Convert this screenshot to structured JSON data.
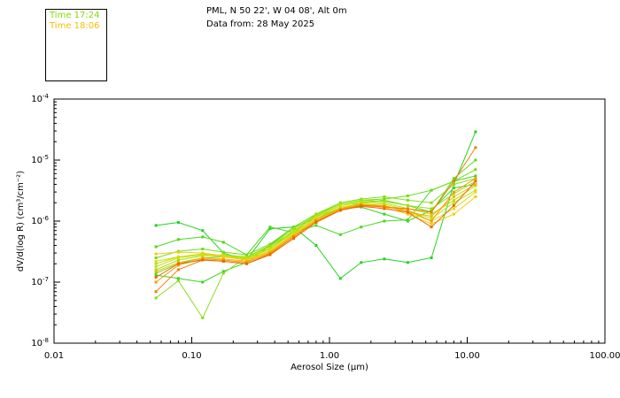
{
  "legend": [
    {
      "label": "Time 17:24",
      "color": "#7fdd00"
    },
    {
      "label": "Time 18:06",
      "color": "#f0c000"
    }
  ],
  "header": {
    "line1": "PML, N 50 22', W 04 08', Alt 0m",
    "line2": "Data from: 28 May 2025"
  },
  "chart_data": {
    "type": "line",
    "title": "",
    "xlabel": "Aerosol Size (μm)",
    "ylabel": "dV/d(log R) (cm³/cm⁻²)",
    "xscale": "log",
    "yscale": "log",
    "xlim": [
      0.01,
      100
    ],
    "ylim": [
      1e-08,
      0.0001
    ],
    "xticks": [
      {
        "value": 0.01,
        "label": "0.01"
      },
      {
        "value": 0.1,
        "label": "0.10"
      },
      {
        "value": 1,
        "label": "1.00"
      },
      {
        "value": 10,
        "label": "10.00"
      },
      {
        "value": 100,
        "label": "100.00"
      }
    ],
    "yticks": [
      {
        "value": 1e-08,
        "base": "10",
        "exp": "-8"
      },
      {
        "value": 1e-07,
        "base": "10",
        "exp": "-7"
      },
      {
        "value": 1e-06,
        "base": "10",
        "exp": "-6"
      },
      {
        "value": 1e-05,
        "base": "10",
        "exp": "-5"
      },
      {
        "value": 0.0001,
        "base": "10",
        "exp": "-4"
      }
    ],
    "x": [
      0.055,
      0.08,
      0.12,
      0.17,
      0.25,
      0.37,
      0.55,
      0.8,
      1.2,
      1.7,
      2.5,
      3.7,
      5.5,
      8.0,
      11.5
    ],
    "series": [
      {
        "name": "s1",
        "color": "#22d422",
        "values": [
          8.5e-07,
          9.5e-07,
          7e-07,
          3e-07,
          2.3e-07,
          7.5e-07,
          8e-07,
          4e-07,
          1.15e-07,
          2.1e-07,
          2.4e-07,
          2.1e-07,
          2.5e-07,
          4e-06,
          2.9e-05
        ]
      },
      {
        "name": "s2",
        "color": "#36d61e",
        "values": [
          1.3e-07,
          1.15e-07,
          1e-07,
          1.5e-07,
          2.1e-07,
          4e-07,
          8e-07,
          1.1e-06,
          1.6e-06,
          1.7e-06,
          1.3e-06,
          1e-06,
          1.5e-06,
          3.5e-06,
          4e-06
        ]
      },
      {
        "name": "s3",
        "color": "#4cd81c",
        "values": [
          3.8e-07,
          5e-07,
          5.5e-07,
          4.5e-07,
          2.8e-07,
          8e-07,
          6.5e-07,
          8.5e-07,
          6e-07,
          8e-07,
          1e-06,
          1.05e-06,
          3.2e-06,
          4.5e-06,
          5.5e-06
        ]
      },
      {
        "name": "s4",
        "color": "#5edb1a",
        "values": [
          1.4e-07,
          2e-07,
          2.5e-07,
          2.6e-07,
          2.5e-07,
          3.5e-07,
          7e-07,
          1.2e-06,
          1.6e-06,
          2e-06,
          2.2e-06,
          1.8e-06,
          1.4e-06,
          5e-06,
          1e-05
        ]
      },
      {
        "name": "s5",
        "color": "#70dd18",
        "values": [
          2.5e-07,
          3.2e-07,
          3.5e-07,
          3.1e-07,
          2.8e-07,
          4.2e-07,
          8e-07,
          1.3e-06,
          1.9e-06,
          2.2e-06,
          2.3e-06,
          2.6e-06,
          3.2e-06,
          4.5e-06,
          7e-06
        ]
      },
      {
        "name": "s6",
        "color": "#84df16",
        "values": [
          5.5e-08,
          1.05e-07,
          2.6e-08,
          1.4e-07,
          2.6e-07,
          4e-07,
          6.5e-07,
          1.3e-06,
          2e-06,
          2.3e-06,
          2.5e-06,
          2.2e-06,
          2e-06,
          4e-06,
          5e-06
        ]
      },
      {
        "name": "s7",
        "color": "#98e014",
        "values": [
          1.6e-07,
          2.3e-07,
          2.7e-07,
          2.8e-07,
          2.6e-07,
          3.8e-07,
          7.5e-07,
          1.25e-06,
          1.9e-06,
          2.2e-06,
          2.1e-06,
          1.8e-06,
          1.6e-06,
          2.8e-06,
          4.5e-06
        ]
      },
      {
        "name": "s8",
        "color": "#aee212",
        "values": [
          2e-07,
          2.6e-07,
          2.9e-07,
          2.7e-07,
          2.5e-07,
          3.6e-07,
          7e-07,
          1.2e-06,
          1.8e-06,
          2.1e-06,
          2e-06,
          1.6e-06,
          1.3e-06,
          2.2e-06,
          3.8e-06
        ]
      },
      {
        "name": "s9",
        "color": "#c4e210",
        "values": [
          1.8e-07,
          2.5e-07,
          2.8e-07,
          2.7e-07,
          2.4e-07,
          3.5e-07,
          6.5e-07,
          1.15e-06,
          1.8e-06,
          2e-06,
          1.9e-06,
          1.5e-06,
          1.1e-06,
          2e-06,
          3.2e-06
        ]
      },
      {
        "name": "s10",
        "color": "#dcdc0e",
        "values": [
          2.2e-07,
          2.6e-07,
          2.8e-07,
          2.6e-07,
          2.3e-07,
          3.3e-07,
          6.2e-07,
          1.1e-06,
          1.7e-06,
          1.9e-06,
          1.8e-06,
          1.4e-06,
          1e-06,
          1.6e-06,
          3e-06
        ]
      },
      {
        "name": "s11",
        "color": "#f0cc0a",
        "values": [
          2.9e-07,
          3.1e-07,
          3e-07,
          2.7e-07,
          2.3e-07,
          3.2e-07,
          6e-07,
          1.05e-06,
          1.6e-06,
          1.85e-06,
          1.7e-06,
          1.3e-06,
          9e-07,
          1.3e-06,
          2.5e-06
        ]
      },
      {
        "name": "s12",
        "color": "#f8b408",
        "values": [
          1.5e-07,
          2.1e-07,
          2.5e-07,
          2.4e-07,
          2.2e-07,
          3.1e-07,
          5.8e-07,
          1.05e-06,
          1.6e-06,
          1.9e-06,
          1.8e-06,
          1.4e-06,
          1.2e-06,
          2.5e-06,
          4e-06
        ]
      },
      {
        "name": "s13",
        "color": "#f89a06",
        "values": [
          1e-07,
          1.9e-07,
          2.4e-07,
          2.3e-07,
          2.1e-07,
          3e-07,
          5.5e-07,
          1e-06,
          1.55e-06,
          1.85e-06,
          1.75e-06,
          1.5e-06,
          1e-06,
          3e-06,
          5e-06
        ]
      },
      {
        "name": "s14",
        "color": "#f07e04",
        "values": [
          7e-08,
          1.6e-07,
          2.3e-07,
          2.2e-07,
          2e-07,
          2.9e-07,
          5.5e-07,
          1e-06,
          1.5e-06,
          1.8e-06,
          1.7e-06,
          1.6e-06,
          1.4e-06,
          4.5e-06,
          1.6e-05
        ]
      },
      {
        "name": "s15",
        "color": "#e86a02",
        "values": [
          1.2e-07,
          2e-07,
          2.3e-07,
          2.2e-07,
          2e-07,
          2.8e-07,
          5.2e-07,
          9.5e-07,
          1.5e-06,
          1.75e-06,
          1.6e-06,
          1.4e-06,
          8e-07,
          1.8e-06,
          4.5e-06
        ]
      }
    ]
  }
}
